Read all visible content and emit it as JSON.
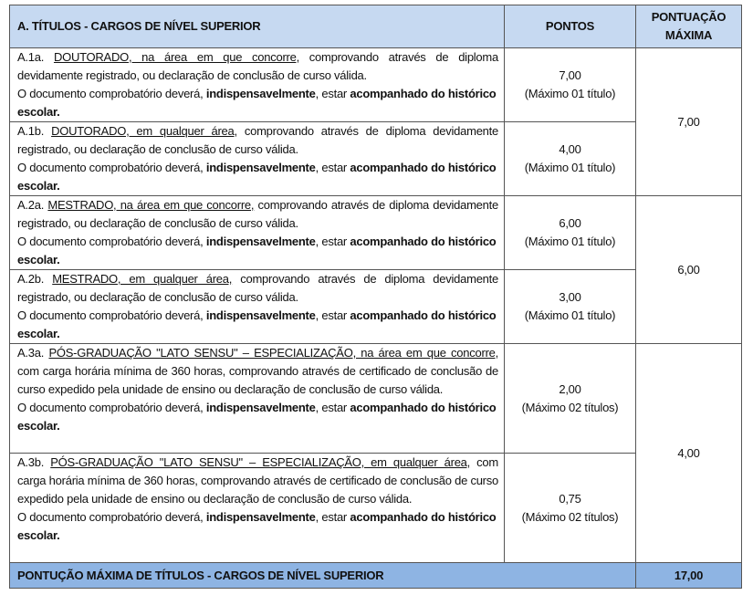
{
  "header": {
    "title": "A. TÍTULOS - CARGOS DE NÍVEL SUPERIOR",
    "points": "PONTOS",
    "max": "PONTUAÇÃO MÁXIMA"
  },
  "colors": {
    "header_bg": "#c6d9f1",
    "footer_bg": "#8eb4e3"
  },
  "rows": [
    {
      "code": "A.1a.",
      "desc": [
        {
          "t": "DOUTORADO, na área em que concorre,",
          "u": true
        },
        {
          "t": " comprovando através de diploma devidamente registrado, ou declaração de conclusão de curso válida."
        }
      ],
      "note": [
        {
          "t": "O documento comprobatório deverá, "
        },
        {
          "t": "indispensavelmente",
          "b": true
        },
        {
          "t": ", estar "
        },
        {
          "t": "acompanhado do histórico escolar.",
          "b": true
        }
      ],
      "points": "7,00",
      "points_note": "(Máximo 01 título)"
    },
    {
      "code": "A.1b.",
      "desc": [
        {
          "t": "DOUTORADO, em qualquer área,",
          "u": true
        },
        {
          "t": " comprovando através de diploma devidamente registrado, ou declaração de conclusão de curso válida."
        }
      ],
      "note": [
        {
          "t": "O documento comprobatório deverá, "
        },
        {
          "t": "indispensavelmente",
          "b": true
        },
        {
          "t": ", estar "
        },
        {
          "t": "acompanhado do histórico escolar.",
          "b": true
        }
      ],
      "points": "4,00",
      "points_note": "(Máximo 01 título)"
    },
    {
      "code": "A.2a.",
      "desc": [
        {
          "t": "MESTRADO, na área em que concorre,",
          "u": true
        },
        {
          "t": " comprovando através de diploma devidamente registrado, ou declaração de conclusão de curso válida."
        }
      ],
      "note": [
        {
          "t": "O documento comprobatório deverá, "
        },
        {
          "t": "indispensavelmente",
          "b": true
        },
        {
          "t": ", estar "
        },
        {
          "t": "acompanhado do histórico escolar.",
          "b": true
        }
      ],
      "points": "6,00",
      "points_note": "(Máximo 01 título)"
    },
    {
      "code": "A.2b.",
      "desc": [
        {
          "t": "MESTRADO, em qualquer área,",
          "u": true
        },
        {
          "t": " comprovando através de diploma devidamente registrado, ou declaração de conclusão de curso válida."
        }
      ],
      "note": [
        {
          "t": "O documento comprobatório deverá, "
        },
        {
          "t": "indispensavelmente",
          "b": true
        },
        {
          "t": ", estar "
        },
        {
          "t": "acompanhado do histórico escolar.",
          "b": true
        }
      ],
      "points": "3,00",
      "points_note": "(Máximo 01 título)"
    },
    {
      "code": "A.3a.",
      "desc": [
        {
          "t": "PÓS-GRADUAÇÃO \"LATO SENSU\" – ESPECIALIZAÇÃO, na área em que concorre,",
          "u": true
        },
        {
          "t": " com carga horária mínima de 360 horas, comprovando através de certificado de conclusão de curso expedido pela unidade de ensino ou declaração de conclusão de curso válida."
        }
      ],
      "note": [
        {
          "t": "O documento comprobatório deverá, "
        },
        {
          "t": "indispensavelmente",
          "b": true
        },
        {
          "t": ", estar "
        },
        {
          "t": "acompanhado do histórico escolar.",
          "b": true
        }
      ],
      "points": "2,00",
      "points_note": "(Máximo 02 títulos)"
    },
    {
      "code": "A.3b.",
      "desc": [
        {
          "t": "PÓS-GRADUAÇÃO \"LATO SENSU\" – ESPECIALIZAÇÃO, em qualquer área,",
          "u": true
        },
        {
          "t": " com carga horária mínima de 360 horas, comprovando através de certificado de conclusão de curso expedido pela unidade de ensino ou declaração de conclusão de curso válida."
        }
      ],
      "note": [
        {
          "t": "O documento comprobatório deverá, "
        },
        {
          "t": "indispensavelmente",
          "b": true
        },
        {
          "t": ", estar "
        },
        {
          "t": "acompanhado do histórico escolar.",
          "b": true
        }
      ],
      "points": "0,75",
      "points_note": "(Máximo 02 títulos)"
    }
  ],
  "group_max": [
    "7,00",
    "6,00",
    "4,00"
  ],
  "footer": {
    "label": "PONTUÇÃO MÁXIMA DE TÍTULOS - CARGOS DE NÍVEL SUPERIOR",
    "total": "17,00"
  }
}
